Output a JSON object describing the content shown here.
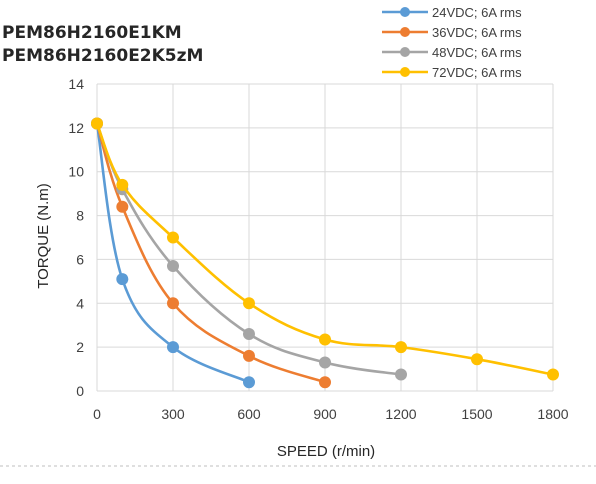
{
  "chart_data": {
    "type": "line",
    "title_lines": [
      "PEM86H2160E1KM",
      "PEM86H2160E2K5zM"
    ],
    "xlabel": "SPEED (r/min)",
    "ylabel": "TORQUE (N.m)",
    "xlim": [
      0,
      1800
    ],
    "ylim": [
      0,
      14
    ],
    "xticks": [
      0,
      300,
      600,
      900,
      1200,
      1500,
      1800
    ],
    "yticks": [
      0,
      2,
      4,
      6,
      8,
      10,
      12,
      14
    ],
    "grid": true,
    "legend_position": "top-right",
    "series": [
      {
        "name": "24VDC; 6A rms",
        "color": "#5b9bd5",
        "points": [
          [
            0,
            12.2
          ],
          [
            100,
            5.1
          ],
          [
            300,
            2.0
          ],
          [
            600,
            0.4
          ]
        ]
      },
      {
        "name": "36VDC; 6A rms",
        "color": "#ed7d31",
        "points": [
          [
            0,
            12.2
          ],
          [
            100,
            8.4
          ],
          [
            300,
            4.0
          ],
          [
            600,
            1.6
          ],
          [
            900,
            0.4
          ]
        ]
      },
      {
        "name": "48VDC; 6A rms",
        "color": "#a5a5a5",
        "points": [
          [
            0,
            12.2
          ],
          [
            100,
            9.2
          ],
          [
            300,
            5.7
          ],
          [
            600,
            2.6
          ],
          [
            900,
            1.3
          ],
          [
            1200,
            0.75
          ]
        ]
      },
      {
        "name": "72VDC; 6A rms",
        "color": "#ffc000",
        "points": [
          [
            0,
            12.2
          ],
          [
            100,
            9.4
          ],
          [
            300,
            7.0
          ],
          [
            600,
            4.0
          ],
          [
            900,
            2.35
          ],
          [
            1200,
            2.0
          ],
          [
            1500,
            1.45
          ],
          [
            1800,
            0.75
          ]
        ]
      }
    ]
  }
}
